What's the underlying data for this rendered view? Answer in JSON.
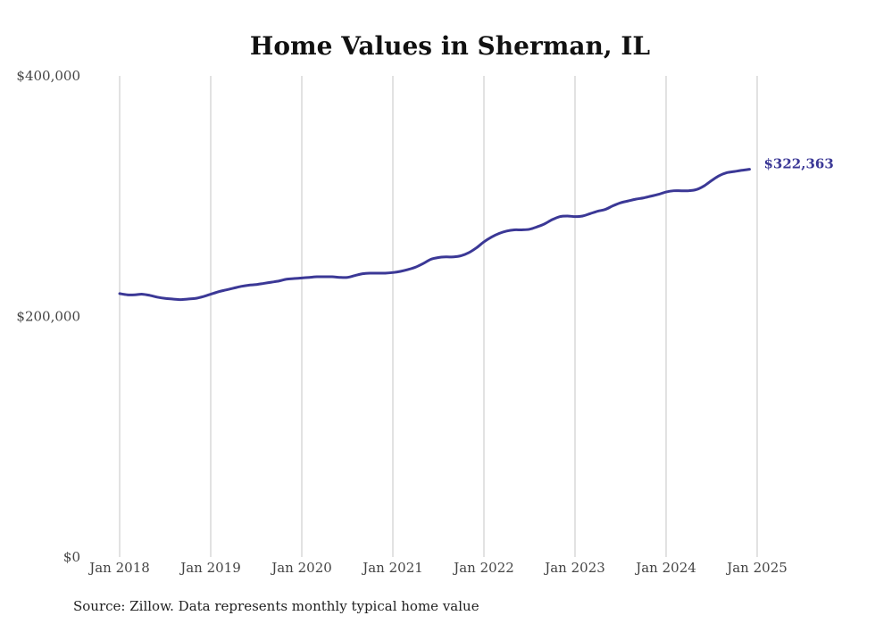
{
  "chart_data": {
    "type": "line",
    "title": "Home Values in Sherman, IL",
    "xlabel": "",
    "ylabel": "",
    "ylim": [
      0,
      400000
    ],
    "yticks": [
      {
        "value": 0,
        "label": "$0"
      },
      {
        "value": 200000,
        "label": "$200,000"
      },
      {
        "value": 400000,
        "label": "$400,000"
      }
    ],
    "xlim": [
      "2018-01",
      "2025-04"
    ],
    "xticks": [
      {
        "x": "2018-01",
        "label": "Jan 2018"
      },
      {
        "x": "2019-01",
        "label": "Jan 2019"
      },
      {
        "x": "2020-01",
        "label": "Jan 2020"
      },
      {
        "x": "2021-01",
        "label": "Jan 2021"
      },
      {
        "x": "2022-01",
        "label": "Jan 2022"
      },
      {
        "x": "2023-01",
        "label": "Jan 2023"
      },
      {
        "x": "2024-01",
        "label": "Jan 2024"
      },
      {
        "x": "2025-01",
        "label": "Jan 2025"
      }
    ],
    "grid": {
      "vertical": true,
      "horizontal": false
    },
    "series": [
      {
        "color": "#3b3896",
        "end_label": "$322,363",
        "points": [
          [
            "2018-01",
            219000
          ],
          [
            "2018-02",
            218000
          ],
          [
            "2018-03",
            218000
          ],
          [
            "2018-04",
            218500
          ],
          [
            "2018-05",
            217500
          ],
          [
            "2018-06",
            216000
          ],
          [
            "2018-07",
            215000
          ],
          [
            "2018-08",
            214500
          ],
          [
            "2018-09",
            214000
          ],
          [
            "2018-10",
            214500
          ],
          [
            "2018-11",
            215000
          ],
          [
            "2018-12",
            216500
          ],
          [
            "2019-01",
            218500
          ],
          [
            "2019-02",
            220500
          ],
          [
            "2019-03",
            222000
          ],
          [
            "2019-04",
            223500
          ],
          [
            "2019-05",
            225000
          ],
          [
            "2019-06",
            226000
          ],
          [
            "2019-07",
            226500
          ],
          [
            "2019-08",
            227500
          ],
          [
            "2019-09",
            228500
          ],
          [
            "2019-10",
            229500
          ],
          [
            "2019-11",
            231000
          ],
          [
            "2019-12",
            231500
          ],
          [
            "2020-01",
            232000
          ],
          [
            "2020-02",
            232500
          ],
          [
            "2020-03",
            233000
          ],
          [
            "2020-04",
            233000
          ],
          [
            "2020-05",
            233000
          ],
          [
            "2020-06",
            232500
          ],
          [
            "2020-07",
            232500
          ],
          [
            "2020-08",
            234000
          ],
          [
            "2020-09",
            235500
          ],
          [
            "2020-10",
            236000
          ],
          [
            "2020-11",
            236000
          ],
          [
            "2020-12",
            236000
          ],
          [
            "2021-01",
            236500
          ],
          [
            "2021-02",
            237500
          ],
          [
            "2021-03",
            239000
          ],
          [
            "2021-04",
            241000
          ],
          [
            "2021-05",
            244000
          ],
          [
            "2021-06",
            247500
          ],
          [
            "2021-07",
            249000
          ],
          [
            "2021-08",
            249500
          ],
          [
            "2021-09",
            249500
          ],
          [
            "2021-10",
            250500
          ],
          [
            "2021-11",
            253000
          ],
          [
            "2021-12",
            257000
          ],
          [
            "2022-01",
            262000
          ],
          [
            "2022-02",
            266000
          ],
          [
            "2022-03",
            269000
          ],
          [
            "2022-04",
            271000
          ],
          [
            "2022-05",
            272000
          ],
          [
            "2022-06",
            272000
          ],
          [
            "2022-07",
            272500
          ],
          [
            "2022-08",
            274500
          ],
          [
            "2022-09",
            277000
          ],
          [
            "2022-10",
            280500
          ],
          [
            "2022-11",
            283000
          ],
          [
            "2022-12",
            283500
          ],
          [
            "2023-01",
            283000
          ],
          [
            "2023-02",
            283500
          ],
          [
            "2023-03",
            285500
          ],
          [
            "2023-04",
            287500
          ],
          [
            "2023-05",
            289000
          ],
          [
            "2023-06",
            292000
          ],
          [
            "2023-07",
            294500
          ],
          [
            "2023-08",
            296000
          ],
          [
            "2023-09",
            297500
          ],
          [
            "2023-10",
            298500
          ],
          [
            "2023-11",
            300000
          ],
          [
            "2023-12",
            301500
          ],
          [
            "2024-01",
            303500
          ],
          [
            "2024-02",
            304500
          ],
          [
            "2024-03",
            304500
          ],
          [
            "2024-04",
            304500
          ],
          [
            "2024-05",
            305500
          ],
          [
            "2024-06",
            308500
          ],
          [
            "2024-07",
            313000
          ],
          [
            "2024-08",
            317000
          ],
          [
            "2024-09",
            319500
          ],
          [
            "2024-10",
            320500
          ],
          [
            "2024-11",
            321500
          ],
          [
            "2024-12",
            322363
          ]
        ]
      }
    ]
  },
  "source": "Source: Zillow. Data represents monthly typical home value"
}
